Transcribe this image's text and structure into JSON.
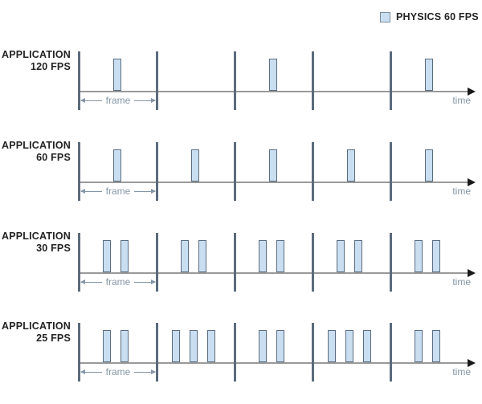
{
  "legend": {
    "label": "PHYSICS 60 FPS"
  },
  "labels": {
    "frame": "frame",
    "time": "time"
  },
  "colors": {
    "pulse_fill": "#C9DFF1",
    "pulse_border": "#5A6C7E",
    "divider": "#5A6B7B",
    "axis_line": "#999999",
    "axis_arrow": "#1A1A1A",
    "annotation": "#8496A6",
    "label_text": "#232323"
  },
  "rows": [
    {
      "label_line1": "APPLICATION",
      "label_line2": "120 FPS",
      "frames": [
        [
          43
        ],
        [],
        [
          43
        ],
        [],
        [
          43
        ]
      ]
    },
    {
      "label_line1": "APPLICATION",
      "label_line2": "60 FPS",
      "frames": [
        [
          43
        ],
        [
          43
        ],
        [
          43
        ],
        [
          43
        ],
        [
          43
        ]
      ]
    },
    {
      "label_line1": "APPLICATION",
      "label_line2": "30 FPS",
      "frames": [
        [
          30,
          52
        ],
        [
          30,
          52
        ],
        [
          30,
          52
        ],
        [
          30,
          52
        ],
        [
          30,
          52
        ]
      ]
    },
    {
      "label_line1": "APPLICATION",
      "label_line2": "25 FPS",
      "frames": [
        [
          30,
          52
        ],
        [
          19,
          41,
          63
        ],
        [
          30,
          52
        ],
        [
          19,
          41,
          63
        ],
        [
          30,
          52
        ]
      ]
    }
  ]
}
